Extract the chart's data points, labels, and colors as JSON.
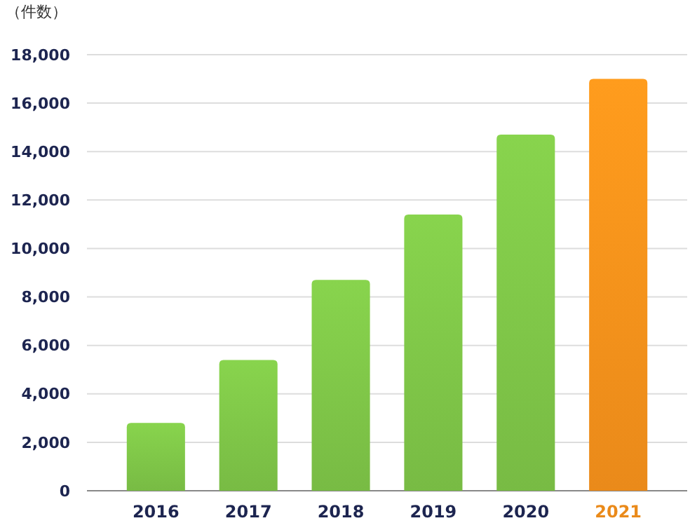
{
  "chart_data": {
    "type": "bar",
    "ylabel": "（件数）",
    "categories": [
      "2016",
      "2017",
      "2018",
      "2019",
      "2020",
      "2021"
    ],
    "values": [
      2800,
      5400,
      8700,
      11400,
      14700,
      17000
    ],
    "colors": [
      "#78bb44",
      "#78bb44",
      "#78bb44",
      "#78bb44",
      "#78bb44",
      "#ea8a1a"
    ],
    "ylim": [
      0,
      18000
    ],
    "yticks": [
      {
        "value": 0,
        "label": "0"
      },
      {
        "value": 2000,
        "label": "2,000"
      },
      {
        "value": 4000,
        "label": "4,000"
      },
      {
        "value": 6000,
        "label": "6,000"
      },
      {
        "value": 8000,
        "label": "8,000"
      },
      {
        "value": 10000,
        "label": "10,000"
      },
      {
        "value": 12000,
        "label": "12,000"
      },
      {
        "value": 14000,
        "label": "14,000"
      },
      {
        "value": 16000,
        "label": "16,000"
      },
      {
        "value": 18000,
        "label": "18,000"
      }
    ],
    "grid": "y"
  }
}
